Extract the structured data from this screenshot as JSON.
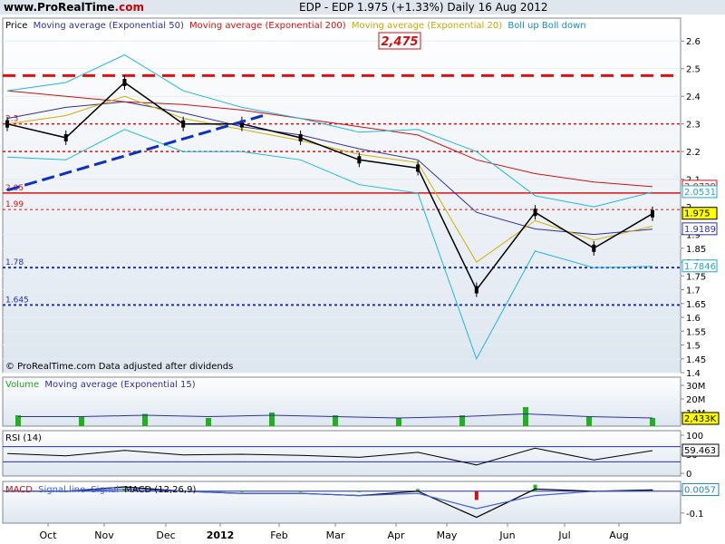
{
  "header": {
    "logo_main": "www.ProRealTime",
    "logo_domain": ".com",
    "title": "EDP - EDP    1.975 (+1.33%)    Daily  16 Aug 2012"
  },
  "legend": {
    "price": "Price",
    "ma50": "Moving average (Exponential 50)",
    "ma200": "Moving average (Exponential 200)",
    "ma20": "Moving average (Exponential 20)",
    "boll": "Boll up Boll down"
  },
  "annotations": {
    "resistance_box": "2,475",
    "copyright": "© ProRealTime.com  Data adjusted after dividends",
    "level_labels": [
      "2.3",
      "2.05",
      "1.99",
      "1.78",
      "1.645"
    ]
  },
  "price_axis": {
    "ticks": [
      "2.6",
      "2.5",
      "2.4",
      "2.3",
      "2.2",
      "2.1",
      "2",
      "1.9",
      "1.85",
      "1.8",
      "1.75",
      "1.7",
      "1.65",
      "1.6",
      "1.55",
      "1.5",
      "1.45",
      "1.4"
    ],
    "badges": [
      {
        "text": "2.0729",
        "color": "#d01010"
      },
      {
        "text": "2.0531",
        "color": "#20a8c8"
      },
      {
        "text": "1.975",
        "color": "#000000",
        "bg": "#ffff00"
      },
      {
        "text": "1.9189",
        "color": "#3030a0"
      },
      {
        "text": "1.7846",
        "color": "#20a8c8"
      }
    ]
  },
  "volume_panel": {
    "label_volume": "Volume",
    "label_ma": "Moving average (Exponential 15)",
    "ticks": [
      "30M",
      "20M",
      "10M"
    ],
    "badge": "2,433K"
  },
  "rsi_panel": {
    "label": "RSI (14)",
    "ticks": [
      "100",
      "50",
      "0"
    ],
    "badge": "59.463"
  },
  "macd_panel": {
    "label_hist": "MACD",
    "label_signal": "Signal line",
    "label_div": "Signal",
    "label_macd": "MACD (12,26,9)",
    "ticks": [
      "0",
      "-0.1"
    ],
    "badge": "0.0057"
  },
  "x_axis": {
    "months": [
      "Oct",
      "Nov",
      "Dec",
      "2012",
      "Feb",
      "Mar",
      "Apr",
      "May",
      "Jun",
      "Jul",
      "Aug"
    ]
  },
  "colors": {
    "price": "#000000",
    "ma50": "#3030a0",
    "ma200": "#d01010",
    "ma20": "#d0b000",
    "bollinger": "#20b8d8",
    "volume": "#20b020",
    "rsi": "#000000",
    "macd_signal": "#4060e0"
  },
  "chart_data": [
    {
      "type": "line",
      "title": "EDP - EDP    1.975 (+1.33%)    Daily  16 Aug 2012",
      "x": [
        "Oct",
        "Nov",
        "Dec",
        "2012",
        "Feb",
        "Mar",
        "Apr",
        "May",
        "Jun",
        "Jul",
        "Aug",
        "16 Aug 2012"
      ],
      "series": [
        {
          "name": "Price",
          "values": [
            2.3,
            2.25,
            2.45,
            2.3,
            2.3,
            2.25,
            2.17,
            2.14,
            1.7,
            1.98,
            1.85,
            1.975
          ]
        },
        {
          "name": "Moving average (Exponential 50)",
          "values": [
            2.32,
            2.36,
            2.38,
            2.34,
            2.29,
            2.26,
            2.21,
            2.17,
            1.98,
            1.92,
            1.9,
            1.9189
          ]
        },
        {
          "name": "Moving average (Exponential 200)",
          "values": [
            2.42,
            2.4,
            2.38,
            2.37,
            2.35,
            2.32,
            2.29,
            2.26,
            2.17,
            2.12,
            2.09,
            2.0729
          ]
        },
        {
          "name": "Moving average (Exponential 20)",
          "values": [
            2.3,
            2.33,
            2.4,
            2.32,
            2.28,
            2.24,
            2.19,
            2.16,
            1.8,
            1.95,
            1.88,
            1.93
          ]
        },
        {
          "name": "Boll up",
          "values": [
            2.42,
            2.45,
            2.55,
            2.42,
            2.36,
            2.32,
            2.27,
            2.28,
            2.2,
            2.04,
            2.0,
            2.0531
          ]
        },
        {
          "name": "Boll down",
          "values": [
            2.18,
            2.17,
            2.28,
            2.2,
            2.2,
            2.17,
            2.08,
            2.05,
            1.45,
            1.84,
            1.78,
            1.7846
          ]
        }
      ],
      "levels": {
        "resistance_2475": 2.475,
        "level_2.3": 2.3,
        "level_2.2": 2.2,
        "level_2.05": 2.05,
        "level_1.99": 1.99,
        "level_1.78": 1.78,
        "level_1.645": 1.645
      },
      "ylim": [
        1.4,
        2.65
      ],
      "grid": true
    },
    {
      "type": "bar",
      "title": "Volume",
      "categories": [
        "Oct",
        "Nov",
        "Dec",
        "2012",
        "Feb",
        "Mar",
        "Apr",
        "May",
        "Jun",
        "Jul",
        "Aug"
      ],
      "values": [
        8,
        7,
        9,
        6,
        10,
        8,
        6,
        8,
        14,
        7,
        6
      ],
      "moving_average_exp15": [
        7,
        7,
        8,
        7,
        8,
        7,
        6,
        7,
        9,
        7,
        6
      ],
      "last": "2,433K",
      "ylim": [
        0,
        32
      ]
    },
    {
      "type": "line",
      "title": "RSI (14)",
      "x": [
        "Oct",
        "Nov",
        "Dec",
        "2012",
        "Feb",
        "Mar",
        "Apr",
        "May",
        "Jun",
        "Jul",
        "Aug",
        "16 Aug 2012"
      ],
      "values": [
        52,
        46,
        60,
        48,
        50,
        47,
        42,
        55,
        22,
        66,
        35,
        59.463
      ],
      "reference_lines": [
        70,
        30
      ],
      "ylim": [
        0,
        100
      ]
    },
    {
      "type": "line",
      "title": "MACD (12,26,9)",
      "x": [
        "Oct",
        "Nov",
        "Dec",
        "2012",
        "Feb",
        "Mar",
        "Apr",
        "May",
        "Jun",
        "Jul",
        "Aug",
        "16 Aug 2012"
      ],
      "series": [
        {
          "name": "MACD",
          "values": [
            0.0,
            0.0,
            0.02,
            0.0,
            -0.01,
            -0.01,
            -0.02,
            0.0,
            -0.12,
            0.01,
            0.0,
            0.0057
          ]
        },
        {
          "name": "Signal line",
          "values": [
            0.0,
            0.0,
            0.01,
            0.0,
            -0.01,
            -0.01,
            -0.02,
            -0.01,
            -0.08,
            -0.02,
            0.0,
            0.0
          ]
        }
      ],
      "ylim": [
        -0.13,
        0.02
      ]
    }
  ]
}
